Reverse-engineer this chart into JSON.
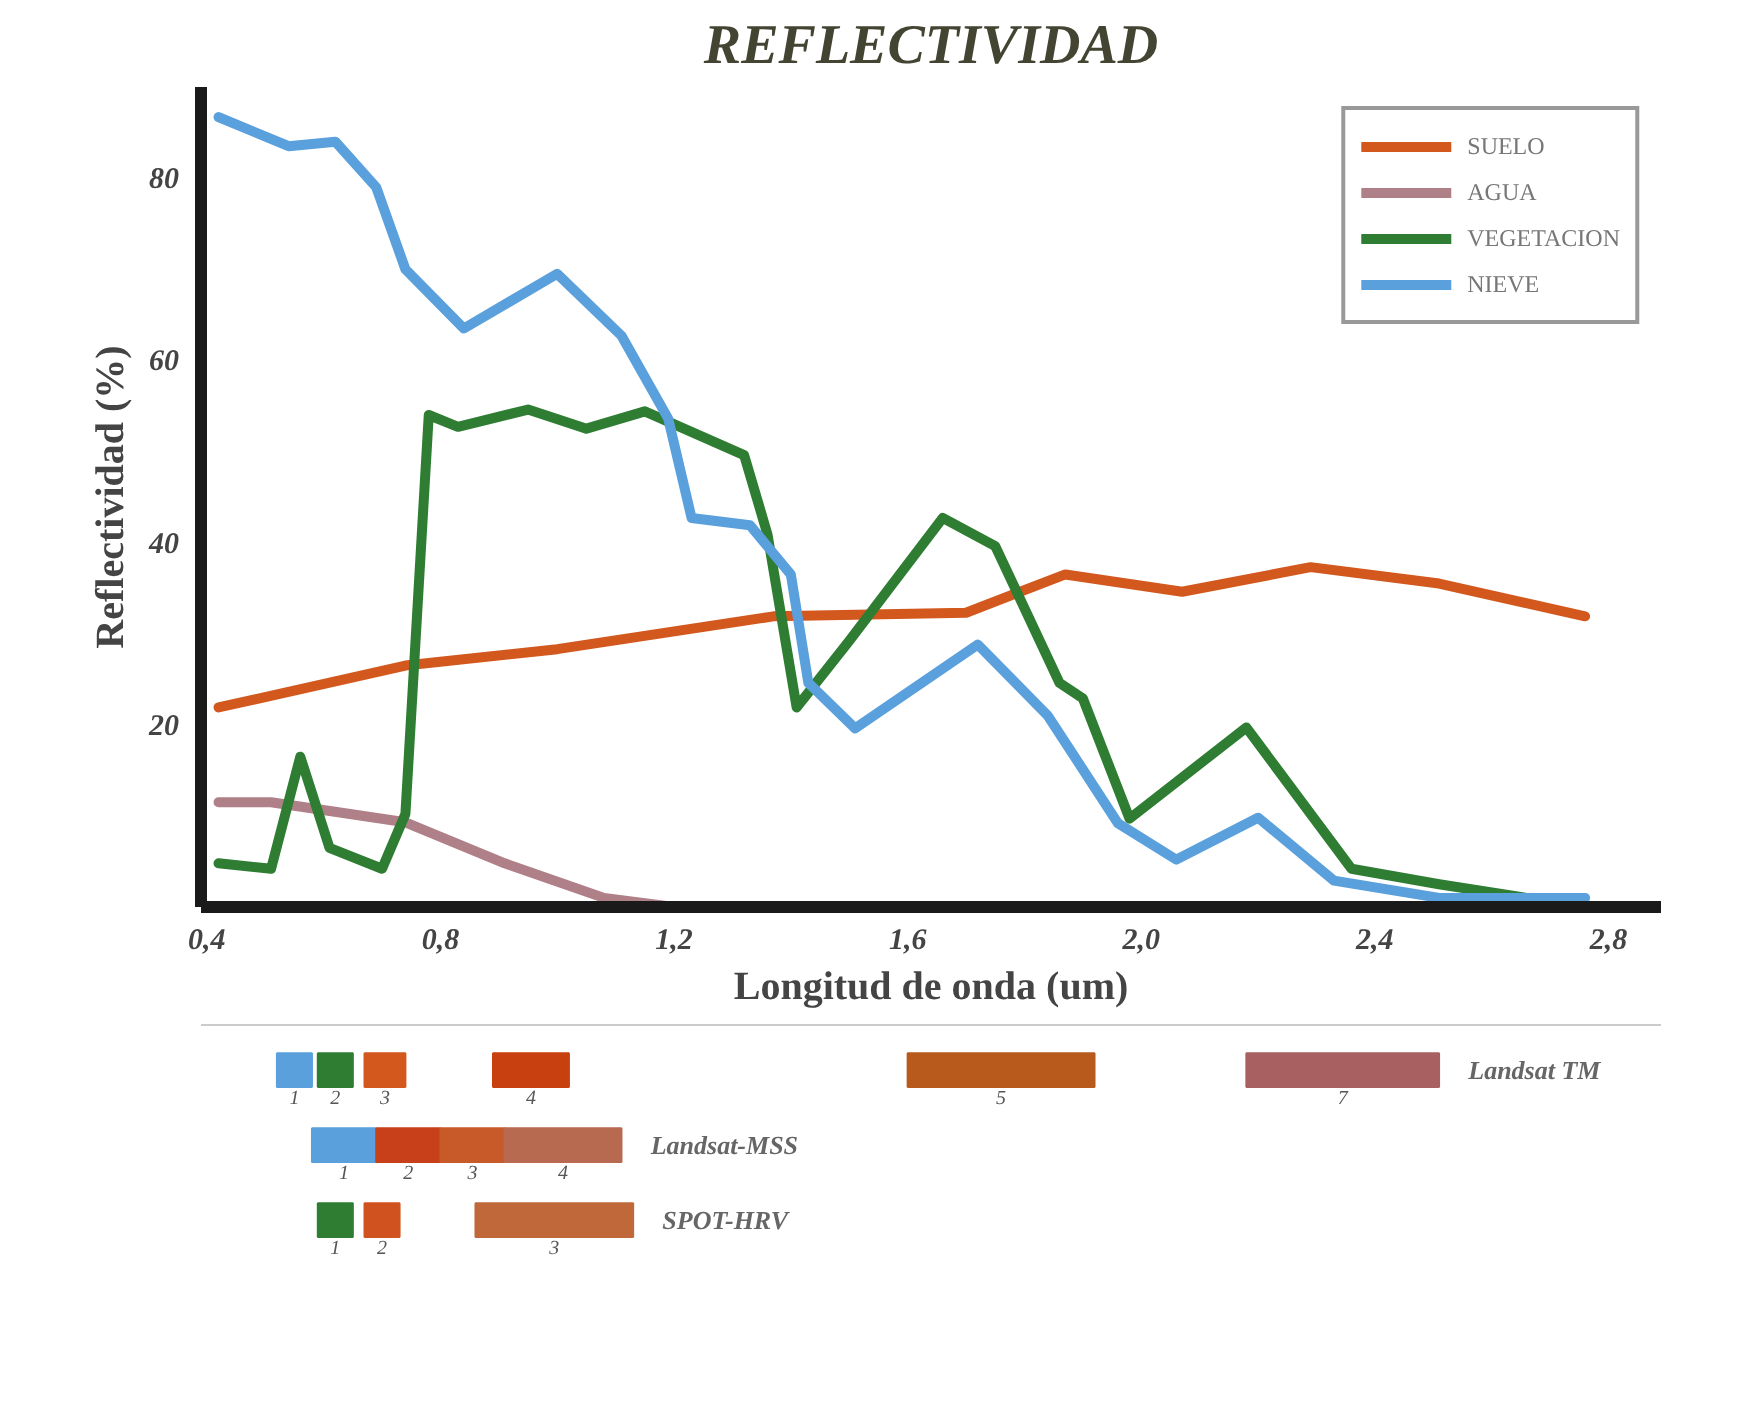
{
  "chart_data": [
    {
      "type": "line",
      "title": "REFLECTIVIDAD",
      "xlabel": "Longitud de onda (um)",
      "ylabel": "Reflectividad (%)",
      "xlim": [
        0.39,
        2.89
      ],
      "ylim": [
        0,
        90
      ],
      "xticks": [
        {
          "value": 0.4,
          "label": "0,4"
        },
        {
          "value": 0.8,
          "label": "0,8"
        },
        {
          "value": 1.2,
          "label": "1,2"
        },
        {
          "value": 1.6,
          "label": "1,6"
        },
        {
          "value": 2.0,
          "label": "2,0"
        },
        {
          "value": 2.4,
          "label": "2,4"
        },
        {
          "value": 2.8,
          "label": "2,8"
        }
      ],
      "yticks": [
        20,
        40,
        60,
        80
      ],
      "grid": false,
      "legend": "top right",
      "marker": "none",
      "line_style": "solid",
      "series": [
        {
          "name": "SUELO",
          "color": "#d2581e",
          "x": [
            0.42,
            0.74,
            1.0,
            1.37,
            1.7,
            1.87,
            2.07,
            2.29,
            2.51,
            2.76
          ],
          "values": [
            21.9,
            26.5,
            28.3,
            31.9,
            32.3,
            36.5,
            34.6,
            37.3,
            35.5,
            31.9
          ]
        },
        {
          "name": "AGUA",
          "color": "#b08088",
          "x": [
            0.42,
            0.51,
            0.74,
            0.91,
            1.08,
            1.2,
            1.62
          ],
          "values": [
            11.5,
            11.5,
            9.3,
            4.8,
            1,
            0,
            0
          ]
        },
        {
          "name": "VEGETACION",
          "color": "#2e7d32",
          "x": [
            0.42,
            0.51,
            0.56,
            0.61,
            0.7,
            0.74,
            0.78,
            0.83,
            0.95,
            1.05,
            1.15,
            1.32,
            1.36,
            1.41,
            1.5,
            1.66,
            1.75,
            1.86,
            1.9,
            1.98,
            2.18,
            2.36,
            2.51,
            2.76
          ],
          "values": [
            4.8,
            4.2,
            16.5,
            6.5,
            4.2,
            10.2,
            54,
            52.7,
            54.6,
            52.5,
            54.4,
            49.6,
            40.9,
            21.9,
            29.2,
            42.7,
            39.6,
            24.6,
            22.9,
            9.7,
            19.7,
            4.2,
            2.5,
            0
          ]
        },
        {
          "name": "NIEVE",
          "color": "#5aa0dc",
          "x": [
            0.42,
            0.54,
            0.62,
            0.69,
            0.74,
            0.84,
            1.0,
            1.11,
            1.19,
            1.23,
            1.33,
            1.4,
            1.43,
            1.51,
            1.72,
            1.84,
            1.96,
            2.06,
            2.2,
            2.33,
            2.51,
            2.76
          ],
          "values": [
            86.7,
            83.5,
            84,
            79,
            70,
            63.5,
            69.5,
            62.7,
            53.6,
            42.7,
            41.9,
            36.5,
            24.6,
            19.6,
            28.8,
            21,
            9.2,
            5.2,
            9.8,
            2.9,
            1,
            1
          ]
        }
      ]
    },
    {
      "type": "bar",
      "orientation": "horizontal",
      "xlim": [
        0.39,
        2.89
      ],
      "tick_labels": false,
      "categories": [
        "Landsat TM",
        "Landsat-MSS",
        "SPOT-HRV"
      ],
      "series": [
        {
          "color": "#5aa0dc",
          "base": [
            0.52,
            null,
            null
          ],
          "values": [
            0.06,
            null,
            null
          ]
        },
        {
          "color": "#2e7d32",
          "base": [
            0.59,
            null,
            null
          ],
          "values": [
            0.06,
            null,
            null
          ]
        },
        {
          "color": "#d2581e",
          "base": [
            0.67,
            null,
            null
          ],
          "values": [
            0.07,
            null,
            null
          ]
        },
        {
          "color": "#c8400f",
          "base": [
            0.89,
            null,
            null
          ],
          "values": [
            0.13,
            null,
            null
          ]
        },
        {
          "color": "#b85a1c",
          "base": [
            1.6,
            null,
            null
          ],
          "values": [
            0.32,
            null,
            null
          ]
        },
        {
          "color": "#a86060",
          "base": [
            2.18,
            null,
            null
          ],
          "values": [
            0.33,
            null,
            null
          ]
        },
        {
          "color": "#5aa0dc",
          "base": [
            null,
            0.58,
            null
          ],
          "values": [
            null,
            0.11,
            null
          ]
        },
        {
          "color": "#c8401a",
          "base": [
            null,
            0.69,
            null
          ],
          "values": [
            null,
            0.11,
            null
          ]
        },
        {
          "color": "#c85a2a",
          "base": [
            null,
            0.8,
            null
          ],
          "values": [
            null,
            0.11,
            null
          ]
        },
        {
          "color": "#b86a50",
          "base": [
            null,
            0.91,
            null
          ],
          "values": [
            null,
            0.2,
            null
          ]
        },
        {
          "color": "#2e7d32",
          "base": [
            null,
            null,
            0.59
          ],
          "values": [
            null,
            null,
            0.06
          ]
        },
        {
          "color": "#d0521e",
          "base": [
            null,
            null,
            0.67
          ],
          "values": [
            null,
            null,
            0.06
          ]
        },
        {
          "color": "#c0683a",
          "base": [
            null,
            null,
            0.86
          ],
          "values": [
            null,
            null,
            0.27
          ]
        }
      ],
      "annotations": [
        "1",
        "2",
        "3",
        "4",
        "5",
        "7",
        "1",
        "2",
        "3",
        "4",
        "1",
        "2",
        "3"
      ]
    }
  ]
}
